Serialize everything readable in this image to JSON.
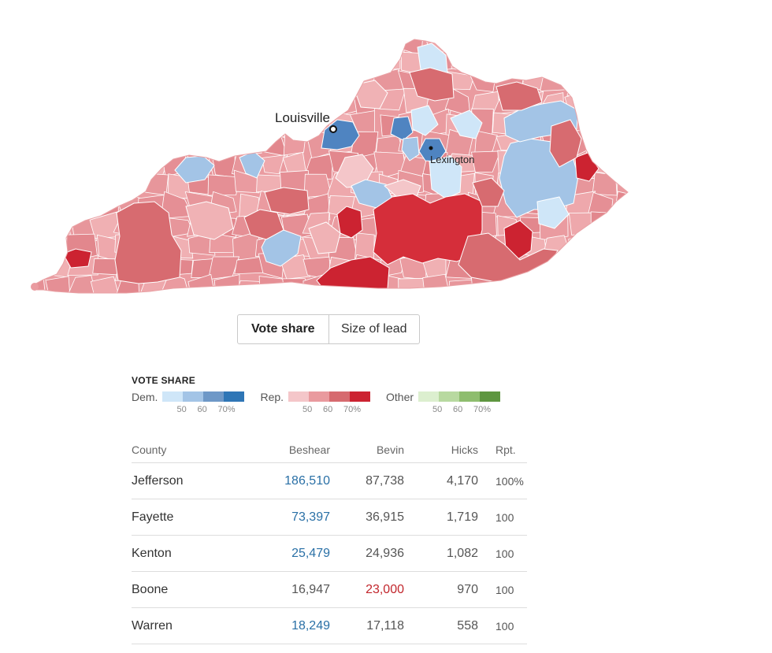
{
  "map": {
    "cities": [
      {
        "name": "Louisville"
      },
      {
        "name": "Lexington"
      }
    ],
    "colors": {
      "dem": [
        "#cfe6f8",
        "#a3c4e6",
        "#6e98c7",
        "#2f76b6"
      ],
      "rep": [
        "#f4c6c9",
        "#e99a9e",
        "#d66a6f",
        "#cc2331"
      ],
      "other": [
        "#dcefcf",
        "#b8d9a0",
        "#8ebd6e",
        "#5e9640"
      ],
      "border": "#ffffff"
    }
  },
  "toggle": {
    "options": [
      "Vote share",
      "Size of lead"
    ],
    "active": "Vote share"
  },
  "legend": {
    "title": "VOTE SHARE",
    "groups": [
      {
        "name": "Dem.",
        "ticks": [
          "50",
          "60",
          "70%"
        ]
      },
      {
        "name": "Rep.",
        "ticks": [
          "50",
          "60",
          "70%"
        ]
      },
      {
        "name": "Other",
        "ticks": [
          "50",
          "60",
          "70%"
        ]
      }
    ]
  },
  "table": {
    "headers": [
      "County",
      "Beshear",
      "Bevin",
      "Hicks",
      "Rpt."
    ],
    "rows": [
      {
        "county": "Jefferson",
        "beshear": "186,510",
        "bevin": "87,738",
        "hicks": "4,170",
        "rpt": "100%",
        "leader": "dem"
      },
      {
        "county": "Fayette",
        "beshear": "73,397",
        "bevin": "36,915",
        "hicks": "1,719",
        "rpt": "100",
        "leader": "dem"
      },
      {
        "county": "Kenton",
        "beshear": "25,479",
        "bevin": "24,936",
        "hicks": "1,082",
        "rpt": "100",
        "leader": "dem"
      },
      {
        "county": "Boone",
        "beshear": "16,947",
        "bevin": "23,000",
        "hicks": "970",
        "rpt": "100",
        "leader": "rep"
      },
      {
        "county": "Warren",
        "beshear": "18,249",
        "bevin": "17,118",
        "hicks": "558",
        "rpt": "100",
        "leader": "dem"
      }
    ]
  }
}
